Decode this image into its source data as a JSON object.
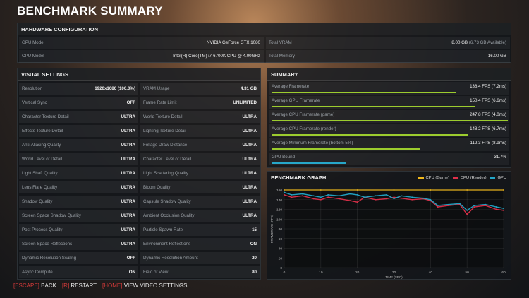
{
  "title": "BENCHMARK SUMMARY",
  "hardware": {
    "header": "HARDWARE CONFIGURATION",
    "gpu_label": "GPU Model",
    "gpu_value": "NVIDIA GeForce GTX 1080",
    "cpu_label": "CPU Model",
    "cpu_value": "Intel(R) Core(TM) i7-6700K CPU @ 4.00GHz",
    "vram_label": "Total VRAM",
    "vram_value": "8.00 GB",
    "vram_extra": "(6.73 GB Available)",
    "mem_label": "Total Memory",
    "mem_value": "16.00 GB"
  },
  "visual": {
    "header": "VISUAL SETTINGS",
    "left": [
      {
        "label": "Resolution",
        "value": "1920x1080 (100.0%)"
      },
      {
        "label": "Vertical Sync",
        "value": "OFF"
      },
      {
        "label": "Character Texture Detail",
        "value": "ULTRA"
      },
      {
        "label": "Effects Texture Detail",
        "value": "ULTRA"
      },
      {
        "label": "Anti-Aliasing Quality",
        "value": "ULTRA"
      },
      {
        "label": "World Level of Detail",
        "value": "ULTRA"
      },
      {
        "label": "Light Shaft Quality",
        "value": "ULTRA"
      },
      {
        "label": "Lens Flare Quality",
        "value": "ULTRA"
      },
      {
        "label": "Shadow Quality",
        "value": "ULTRA"
      },
      {
        "label": "Screen Space Shadow Quality",
        "value": "ULTRA"
      },
      {
        "label": "Post Process Quality",
        "value": "ULTRA"
      },
      {
        "label": "Screen Space Reflections",
        "value": "ULTRA"
      },
      {
        "label": "Dynamic Resolution Scaling",
        "value": "OFF"
      },
      {
        "label": "Async Compute",
        "value": "ON"
      }
    ],
    "right": [
      {
        "label": "VRAM Usage",
        "value": "4.31 GB"
      },
      {
        "label": "Frame Rate Limit",
        "value": "UNLIMITED"
      },
      {
        "label": "World Texture Detail",
        "value": "ULTRA"
      },
      {
        "label": "Lighting Texture Detail",
        "value": "ULTRA"
      },
      {
        "label": "Foliage Draw Distance",
        "value": "ULTRA"
      },
      {
        "label": "Character Level of Detail",
        "value": "ULTRA"
      },
      {
        "label": "Light Scattering Quality",
        "value": "ULTRA"
      },
      {
        "label": "Bloom Quality",
        "value": "ULTRA"
      },
      {
        "label": "Capsule Shadow Quality",
        "value": "ULTRA"
      },
      {
        "label": "Ambient Occlusion Quality",
        "value": "ULTRA"
      },
      {
        "label": "Particle Spawn Rate",
        "value": "15"
      },
      {
        "label": "Environment Reflections",
        "value": "ON"
      },
      {
        "label": "Dynamic Resolution Amount",
        "value": "20"
      },
      {
        "label": "Field of View",
        "value": "80"
      }
    ]
  },
  "summary": {
    "header": "SUMMARY",
    "rows": [
      {
        "label": "Average Framerate",
        "value": "138.4 FPS (7.2ms)",
        "fill": 0.78,
        "color": "#9ccc2e"
      },
      {
        "label": "Average GPU Framerate",
        "value": "150.4 FPS (6.6ms)",
        "fill": 0.86,
        "color": "#9ccc2e"
      },
      {
        "label": "Average CPU Framerate (game)",
        "value": "247.8 FPS (4.0ms)",
        "fill": 1.0,
        "color": "#9ccc2e"
      },
      {
        "label": "Average CPU Framerate (render)",
        "value": "148.2 FPS (6.7ms)",
        "fill": 0.83,
        "color": "#9ccc2e"
      },
      {
        "label": "Average Minimum Framerate (bottom 5%)",
        "value": "112.3 FPS (8.9ms)",
        "fill": 0.63,
        "color": "#9ccc2e"
      },
      {
        "label": "GPU Bound",
        "value": "31.7%",
        "fill": 0.317,
        "color": "#27a7c9"
      }
    ]
  },
  "graph": {
    "header": "BENCHMARK GRAPH",
    "legend": [
      {
        "name": "CPU (Game)",
        "color": "#f0b81c"
      },
      {
        "name": "CPU (Render)",
        "color": "#e0304a"
      },
      {
        "name": "GPU",
        "color": "#22a6c8"
      }
    ],
    "ylabel": "FRAMERATE (FPS)",
    "xlabel": "TIME (SEC)"
  },
  "chart_data": {
    "type": "line",
    "xlabel": "TIME (SEC)",
    "ylabel": "FRAMERATE (FPS)",
    "xlim": [
      0,
      60
    ],
    "ylim": [
      0,
      160
    ],
    "xticks": [
      0,
      10,
      20,
      30,
      40,
      50,
      60
    ],
    "yticks": [
      0,
      20,
      40,
      60,
      80,
      100,
      120,
      140,
      160
    ],
    "grid": true,
    "legend_position": "top-right",
    "series": [
      {
        "name": "CPU (Game)",
        "color": "#f0b81c",
        "x": [
          0,
          10,
          20,
          30,
          40,
          50,
          60
        ],
        "values": [
          160,
          160,
          160,
          160,
          160,
          160,
          160
        ]
      },
      {
        "name": "CPU (Render)",
        "color": "#e0304a",
        "x": [
          0,
          2,
          5,
          8,
          10,
          12,
          15,
          18,
          20,
          22,
          25,
          28,
          30,
          32,
          35,
          38,
          40,
          42,
          45,
          48,
          50,
          52,
          55,
          58,
          60
        ],
        "values": [
          150,
          145,
          148,
          142,
          140,
          145,
          142,
          138,
          135,
          145,
          140,
          142,
          145,
          143,
          140,
          142,
          138,
          125,
          128,
          130,
          110,
          125,
          128,
          120,
          118
        ]
      },
      {
        "name": "GPU",
        "color": "#22a6c8",
        "x": [
          0,
          2,
          5,
          8,
          10,
          12,
          15,
          18,
          20,
          22,
          25,
          28,
          30,
          32,
          35,
          38,
          40,
          42,
          45,
          48,
          50,
          52,
          55,
          58,
          60
        ],
        "values": [
          155,
          150,
          152,
          148,
          145,
          150,
          148,
          152,
          150,
          145,
          148,
          150,
          142,
          148,
          145,
          143,
          140,
          128,
          130,
          132,
          118,
          128,
          130,
          125,
          122
        ]
      }
    ]
  },
  "footer": [
    {
      "key": "[ESCAPE]",
      "label": "BACK"
    },
    {
      "key": "[R]",
      "label": "RESTART"
    },
    {
      "key": "[HOME]",
      "label": "VIEW VIDEO SETTINGS"
    }
  ]
}
